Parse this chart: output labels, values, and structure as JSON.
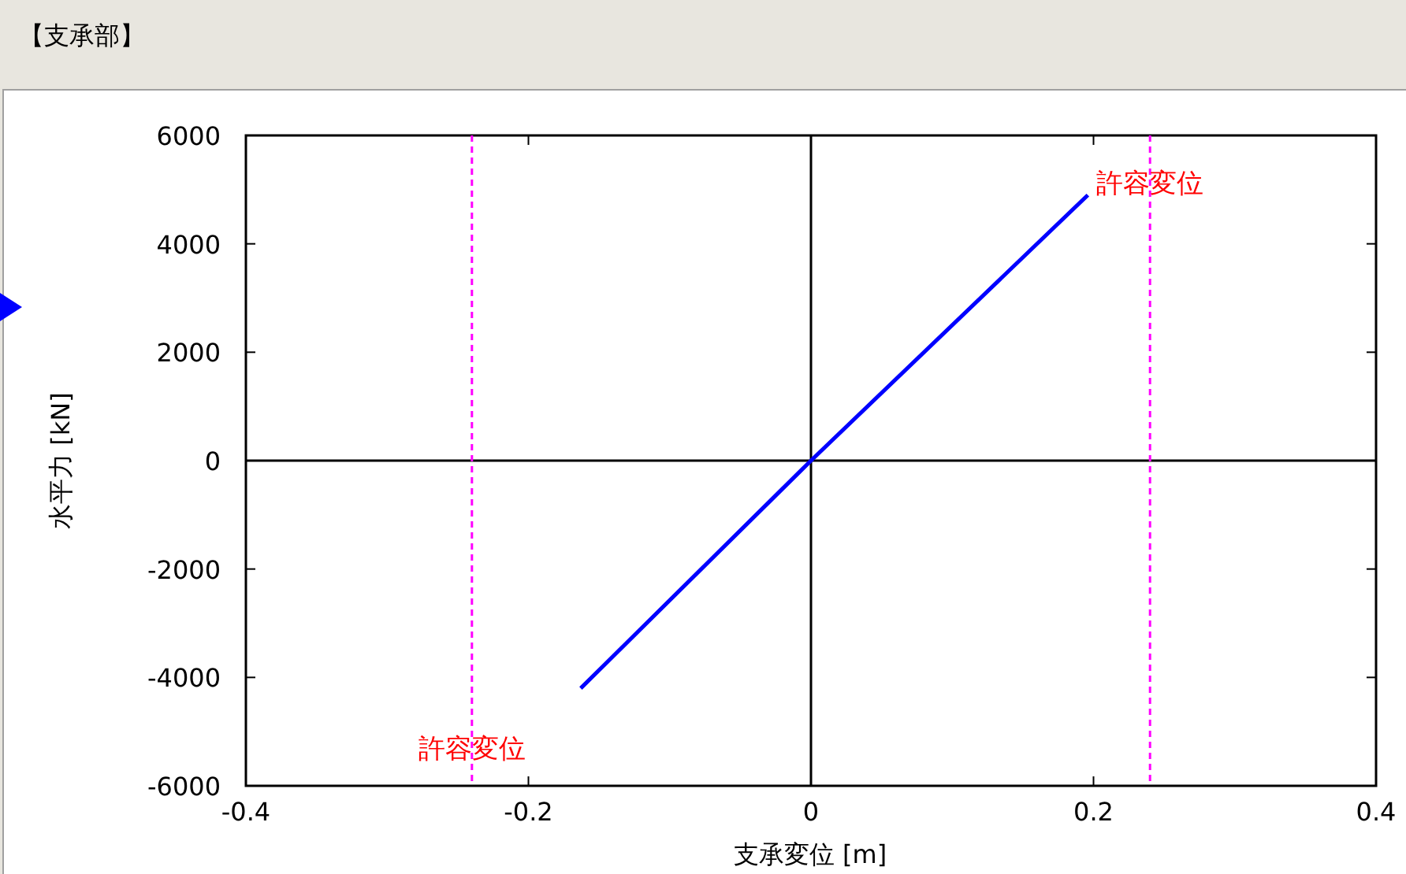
{
  "chart_data": {
    "type": "line",
    "title": "【支承部】",
    "xlabel": "支承変位 [m]",
    "ylabel": "水平力 [kN]",
    "x": [
      -0.163,
      0,
      0.196
    ],
    "series": [
      {
        "color": "#0000ff",
        "values": [
          -4200,
          0,
          4900
        ]
      }
    ],
    "xlim": [
      -0.4,
      0.4
    ],
    "xticks": [
      -0.4,
      -0.2,
      0,
      0.2,
      0.4
    ],
    "ylim": [
      -6000,
      6000
    ],
    "yticks": [
      -6000,
      -4000,
      -2000,
      0,
      2000,
      4000,
      6000
    ],
    "ref_lines": [
      {
        "axis": "x",
        "value": 0,
        "color": "#000000",
        "line_style": "solid"
      },
      {
        "axis": "y",
        "value": 0,
        "color": "#000000",
        "line_style": "solid"
      },
      {
        "axis": "x",
        "value": -0.24,
        "label": "許容変位",
        "color": "#ff00ff",
        "line_style": "dashed"
      },
      {
        "axis": "x",
        "value": 0.24,
        "label": "許容変位",
        "color": "#ff00ff",
        "line_style": "dashed"
      }
    ],
    "grid": false,
    "line_style": "solid"
  }
}
